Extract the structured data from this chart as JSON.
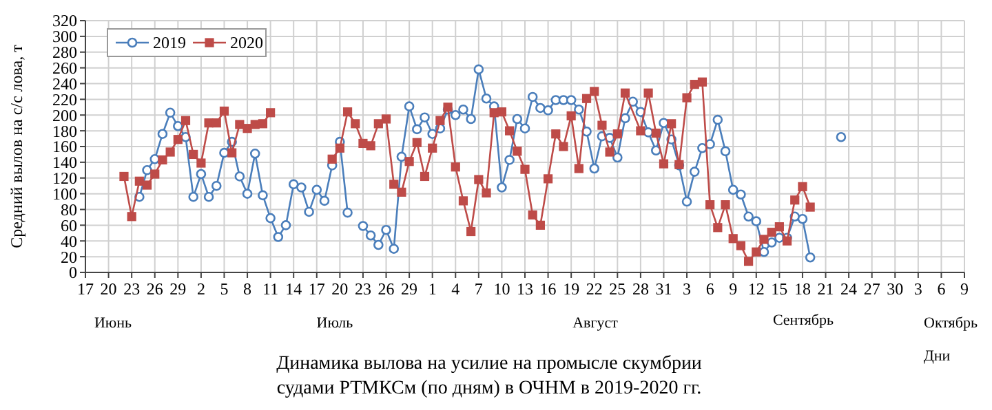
{
  "chart_data": {
    "type": "line",
    "title": "Динамика вылова на усилие на промысле скумбрии судами РТМКСм (по дням) в ОЧНМ в 2019-2020  гг.",
    "xlabel": "Дни",
    "ylabel": "Средний вылов на с/с лова, т",
    "annotations": [
      "Июнь",
      "Июль",
      "Август",
      "Сентябрь",
      "Октябрь"
    ],
    "xlim": [
      "--06-17",
      "--10-09"
    ],
    "xticks": [
      {
        "value": "--06-17",
        "label": "17"
      },
      {
        "value": "--06-20",
        "label": "20"
      },
      {
        "value": "--06-23",
        "label": "23"
      },
      {
        "value": "--06-26",
        "label": "26"
      },
      {
        "value": "--06-29",
        "label": "29"
      },
      {
        "value": "--07-02",
        "label": "2"
      },
      {
        "value": "--07-05",
        "label": "5"
      },
      {
        "value": "--07-08",
        "label": "8"
      },
      {
        "value": "--07-11",
        "label": "11"
      },
      {
        "value": "--07-14",
        "label": "14"
      },
      {
        "value": "--07-17",
        "label": "17"
      },
      {
        "value": "--07-20",
        "label": "20"
      },
      {
        "value": "--07-23",
        "label": "23"
      },
      {
        "value": "--07-26",
        "label": "26"
      },
      {
        "value": "--07-29",
        "label": "29"
      },
      {
        "value": "--08-01",
        "label": "1"
      },
      {
        "value": "--08-04",
        "label": "4"
      },
      {
        "value": "--08-07",
        "label": "7"
      },
      {
        "value": "--08-10",
        "label": "10"
      },
      {
        "value": "--08-13",
        "label": "13"
      },
      {
        "value": "--08-16",
        "label": "16"
      },
      {
        "value": "--08-19",
        "label": "19"
      },
      {
        "value": "--08-22",
        "label": "22"
      },
      {
        "value": "--08-25",
        "label": "25"
      },
      {
        "value": "--08-28",
        "label": "28"
      },
      {
        "value": "--08-31",
        "label": "31"
      },
      {
        "value": "--09-03",
        "label": "3"
      },
      {
        "value": "--09-06",
        "label": "6"
      },
      {
        "value": "--09-09",
        "label": "9"
      },
      {
        "value": "--09-12",
        "label": "12"
      },
      {
        "value": "--09-15",
        "label": "15"
      },
      {
        "value": "--09-18",
        "label": "18"
      },
      {
        "value": "--09-21",
        "label": "21"
      },
      {
        "value": "--09-24",
        "label": "24"
      },
      {
        "value": "--09-27",
        "label": "27"
      },
      {
        "value": "--09-30",
        "label": "30"
      },
      {
        "value": "--10-03",
        "label": "3"
      },
      {
        "value": "--10-06",
        "label": "6"
      },
      {
        "value": "--10-09",
        "label": "9"
      }
    ],
    "ylim": [
      0,
      320
    ],
    "yticks": [
      0,
      20,
      40,
      60,
      80,
      100,
      120,
      140,
      160,
      180,
      200,
      220,
      240,
      260,
      280,
      300,
      320
    ],
    "grid": true,
    "legend": "top left",
    "series": [
      {
        "name": "2019",
        "color": "#4a7ebb",
        "marker": "circle",
        "x": [
          "--06-24",
          "--06-25",
          "--06-26",
          "--06-27",
          "--06-28",
          "--06-29",
          "--06-30",
          "--07-01",
          "--07-02",
          "--07-03",
          "--07-04",
          "--07-05",
          "--07-06",
          "--07-07",
          "--07-08",
          "--07-09",
          "--07-10",
          "--07-11",
          "--07-12",
          "--07-13",
          "--07-14",
          "--07-15",
          "--07-16",
          "--07-17",
          "--07-18",
          "--07-19",
          "--07-20",
          "--07-21",
          "--07-22",
          "--07-23",
          "--07-24",
          "--07-25",
          "--07-26",
          "--07-27",
          "--07-28",
          "--07-29",
          "--07-30",
          "--07-31",
          "--08-01",
          "--08-02",
          "--08-03",
          "--08-04",
          "--08-05",
          "--08-06",
          "--08-07",
          "--08-08",
          "--08-09",
          "--08-10",
          "--08-11",
          "--08-12",
          "--08-13",
          "--08-14",
          "--08-15",
          "--08-16",
          "--08-17",
          "--08-18",
          "--08-19",
          "--08-20",
          "--08-21",
          "--08-22",
          "--08-23",
          "--08-24",
          "--08-25",
          "--08-26",
          "--08-27",
          "--08-28",
          "--08-29",
          "--08-30",
          "--08-31",
          "--09-01",
          "--09-02",
          "--09-03",
          "--09-04",
          "--09-05",
          "--09-06",
          "--09-07",
          "--09-08",
          "--09-09",
          "--09-10",
          "--09-11",
          "--09-12",
          "--09-13",
          "--09-14",
          "--09-15",
          "--09-16",
          "--09-17",
          "--09-18",
          "--09-19",
          "--09-20",
          "--09-23"
        ],
        "values": [
          96,
          130,
          144,
          176,
          203,
          186,
          172,
          96,
          125,
          96,
          110,
          152,
          166,
          122,
          100,
          151,
          98,
          69,
          45,
          60,
          112,
          108,
          77,
          105,
          91,
          136,
          166,
          76,
          null,
          59,
          47,
          35,
          54,
          30,
          147,
          211,
          182,
          197,
          176,
          183,
          207,
          200,
          207,
          195,
          258,
          221,
          211,
          108,
          143,
          195,
          183,
          223,
          209,
          206,
          219,
          219,
          219,
          207,
          179,
          132,
          173,
          171,
          146,
          196,
          217,
          204,
          178,
          155,
          190,
          169,
          136,
          90,
          128,
          158,
          163,
          194,
          154,
          105,
          99,
          71,
          65,
          26,
          38,
          44,
          44,
          71,
          68,
          19,
          null,
          172
        ]
      },
      {
        "name": "2020",
        "color": "#be4b48",
        "marker": "square",
        "x": [
          "--06-22",
          "--06-23",
          "--06-24",
          "--06-25",
          "--06-26",
          "--06-27",
          "--06-28",
          "--06-29",
          "--06-30",
          "--07-01",
          "--07-02",
          "--07-03",
          "--07-04",
          "--07-05",
          "--07-06",
          "--07-07",
          "--07-08",
          "--07-09",
          "--07-10",
          "--07-11",
          "--07-12",
          "--07-19",
          "--07-20",
          "--07-21",
          "--07-22",
          "--07-23",
          "--07-24",
          "--07-25",
          "--07-26",
          "--07-27",
          "--07-28",
          "--07-29",
          "--07-30",
          "--07-31",
          "--08-01",
          "--08-02",
          "--08-03",
          "--08-04",
          "--08-05",
          "--08-06",
          "--08-07",
          "--08-08",
          "--08-09",
          "--08-10",
          "--08-11",
          "--08-12",
          "--08-13",
          "--08-14",
          "--08-15",
          "--08-16",
          "--08-17",
          "--08-18",
          "--08-19",
          "--08-20",
          "--08-21",
          "--08-22",
          "--08-23",
          "--08-24",
          "--08-25",
          "--08-26",
          "--08-28",
          "--08-29",
          "--08-30",
          "--08-31",
          "--09-01",
          "--09-02",
          "--09-03",
          "--09-04",
          "--09-05",
          "--09-06",
          "--09-07",
          "--09-08",
          "--09-09",
          "--09-10",
          "--09-11",
          "--09-12",
          "--09-13",
          "--09-14",
          "--09-15",
          "--09-16",
          "--09-17",
          "--09-18",
          "--09-19"
        ],
        "values": [
          122,
          71,
          116,
          111,
          125,
          143,
          153,
          169,
          193,
          150,
          139,
          190,
          190,
          205,
          152,
          188,
          183,
          188,
          189,
          203,
          null,
          144,
          158,
          204,
          189,
          164,
          161,
          189,
          195,
          112,
          102,
          141,
          165,
          122,
          158,
          193,
          210,
          134,
          91,
          52,
          118,
          101,
          203,
          204,
          180,
          154,
          131,
          73,
          60,
          119,
          176,
          160,
          199,
          132,
          221,
          230,
          187,
          153,
          176,
          228,
          180,
          228,
          177,
          138,
          189,
          137,
          222,
          239,
          242,
          86,
          57,
          86,
          43,
          34,
          14,
          26,
          42,
          51,
          58,
          40,
          92,
          109,
          83
        ]
      }
    ]
  }
}
